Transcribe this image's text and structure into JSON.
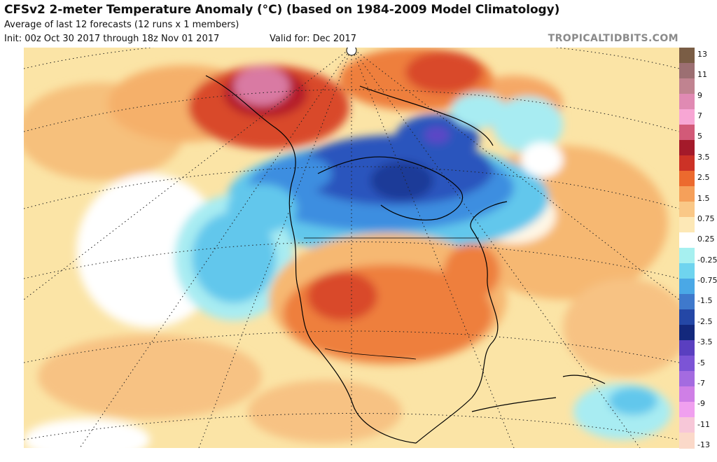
{
  "header": {
    "title": "CFSv2 2-meter Temperature Anomaly (°C) (based on 1984-2009 Model Climatology)",
    "subtitle": "Average of last 12 forecasts (12 runs x 1 members)",
    "init": "Init: 00z Oct 30 2017 through 18z Nov 01 2017",
    "valid": "Valid for: Dec 2017",
    "brand": "TROPICALTIDBITS.COM"
  },
  "legend": {
    "labels": [
      "13",
      "11",
      "9",
      "7",
      "5",
      "3.5",
      "2.5",
      "1.5",
      "0.75",
      "0.25",
      "-0.25",
      "-0.75",
      "-1.5",
      "-2.5",
      "-3.5",
      "-5",
      "-7",
      "-9",
      "-11",
      "-13"
    ],
    "colors": [
      "#7a5d45",
      "#9c6f72",
      "#c08390",
      "#e08ab3",
      "#f7a6d4",
      "#d25a78",
      "#a41a2a",
      "#cc3226",
      "#ec6a2e",
      "#f5a05a",
      "#fac887",
      "#fde8b6",
      "#ffffff",
      "#a6f0f0",
      "#6fd4ef",
      "#4aa8e6",
      "#3f79cc",
      "#2447a6",
      "#13287c",
      "#5a3fc0",
      "#7c54d6",
      "#a46be0",
      "#cf7fe6",
      "#f0a0ef",
      "#f7c7d8",
      "#fbd9c9"
    ]
  },
  "map": {
    "region": "North America",
    "palette": {
      "warm_light": "#fbe4a6",
      "warm_mid": "#f6b872",
      "warm_strong": "#ee7f3d",
      "warm_deep": "#d9482b",
      "hot": "#b51f2c",
      "very_hot": "#d97aa3",
      "neutral": "#ffffff",
      "cool_light": "#a8ecf2",
      "cool_mid": "#62c7ec",
      "cool_strong": "#3d8ee0",
      "cold": "#2a55bd",
      "very_cold": "#1d3a98",
      "extreme_cold": "#5b46c6"
    }
  }
}
